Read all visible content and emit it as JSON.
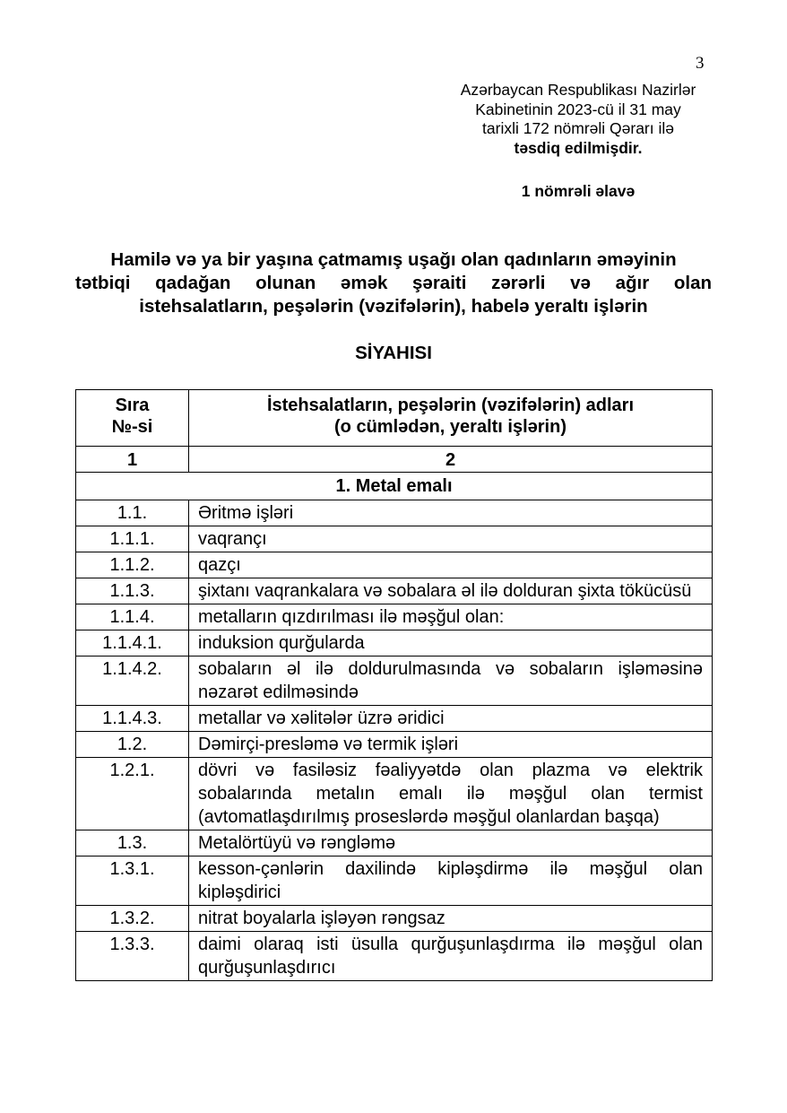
{
  "page_number": "3",
  "approval": {
    "lines": [
      "Azərbaycan Respublikası Nazirlər",
      "Kabinetinin 2023-cü il 31 may",
      "tarixli 172 nömrəli Qərarı ilə"
    ],
    "bold_line": "təsdiq edilmişdir."
  },
  "annex": "1 nömrəli əlavə",
  "title": {
    "lines": [
      "Hamilə və ya bir yaşına çatmamış uşağı olan qadınların əməyinin",
      "tətbiqi qadağan olunan əmək şəraiti zərərli və ağır olan",
      "istehsalatların, peşələrin (vəzifələrin),  habelə yeraltı işlərin"
    ],
    "list_heading": "SİYAHISI"
  },
  "table": {
    "headers": {
      "col1": [
        "Sıra",
        "№-si"
      ],
      "col2": [
        "İstehsalatların, peşələrin (vəzifələrin) adları",
        "(o cümlədən, yeraltı işlərin)"
      ]
    },
    "column_numbers": [
      "1",
      "2"
    ],
    "section": "1. Metal emalı",
    "rows": [
      {
        "num": "1.1.",
        "text": "Əritmə işləri"
      },
      {
        "num": "1.1.1.",
        "text": "vaqrançı"
      },
      {
        "num": "1.1.2.",
        "text": "qazçı"
      },
      {
        "num": "1.1.3.",
        "text": "şixtanı vaqrankalara və sobalara əl ilə dolduran şixta tökücüsü"
      },
      {
        "num": "1.1.4.",
        "text": "metalların qızdırılması ilə məşğul olan:"
      },
      {
        "num": "1.1.4.1.",
        "text": "induksion qurğularda"
      },
      {
        "num": "1.1.4.2.",
        "text": "sobaların əl ilə doldurulmasında və sobaların işləməsinə nəzarət edilməsində"
      },
      {
        "num": "1.1.4.3.",
        "text": "metallar və xəlitələr üzrə əridici"
      },
      {
        "num": "1.2.",
        "text": "Dəmirçi-presləmə və termik işləri"
      },
      {
        "num": "1.2.1.",
        "text": "dövri və fasiləsiz fəaliyyətdə olan plazma və elektrik sobalarında metalın emalı ilə məşğul olan termist (avtomatlaşdırılmış proseslərdə məşğul olanlardan başqa)"
      },
      {
        "num": "1.3.",
        "text": "Metalörtüyü və rəngləmə"
      },
      {
        "num": "1.3.1.",
        "text": "kesson-çənlərin daxilində kipləşdirmə ilə məşğul olan kipləşdirici"
      },
      {
        "num": "1.3.2.",
        "text": "nitrat boyalarla işləyən rəngsaz"
      },
      {
        "num": "1.3.3.",
        "text": "daimi olaraq isti üsulla qurğuşunlaşdırma ilə məşğul olan qurğuşunlaşdırıcı"
      }
    ]
  }
}
